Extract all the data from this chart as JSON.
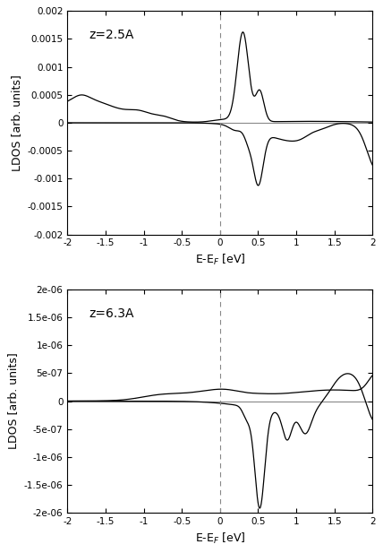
{
  "title1": "z=2.5A",
  "title2": "z=6.3A",
  "xlabel": "E-E$_F$ [eV]",
  "ylabel": "LDOS [arb. units]",
  "xlim": [
    -2,
    2
  ],
  "ylim1": [
    -0.002,
    0.002
  ],
  "ylim2": [
    -2e-06,
    2e-06
  ],
  "yticks1": [
    -0.002,
    -0.0015,
    -0.001,
    -0.0005,
    0,
    0.0005,
    0.001,
    0.0015,
    0.002
  ],
  "ytick_labels1": [
    "-0.002",
    "-0.0015",
    "-0.001",
    "-0.0005",
    "0",
    "0.0005",
    "0.001",
    "0.0015",
    "0.002"
  ],
  "yticks2": [
    -2e-06,
    -1.5e-06,
    -1e-06,
    -5e-07,
    0,
    5e-07,
    1e-06,
    1.5e-06,
    2e-06
  ],
  "ytick_labels2": [
    "-2e-06",
    "-1.5e-06",
    "-1e-06",
    "-5e-07",
    "0",
    "5e-07",
    "1e-06",
    "1.5e-06",
    "2e-06"
  ],
  "xticks": [
    -2,
    -1.5,
    -1,
    -0.5,
    0,
    0.5,
    1,
    1.5,
    2
  ],
  "xtick_labels": [
    "-2",
    "-1.5",
    "-1",
    "-0.5",
    "0",
    "0.5",
    "1",
    "1.5",
    "2"
  ],
  "line_color": "#000000",
  "zero_line_color": "#888888",
  "dashed_color": "#888888",
  "figsize": [
    4.28,
    6.17
  ],
  "dpi": 100
}
